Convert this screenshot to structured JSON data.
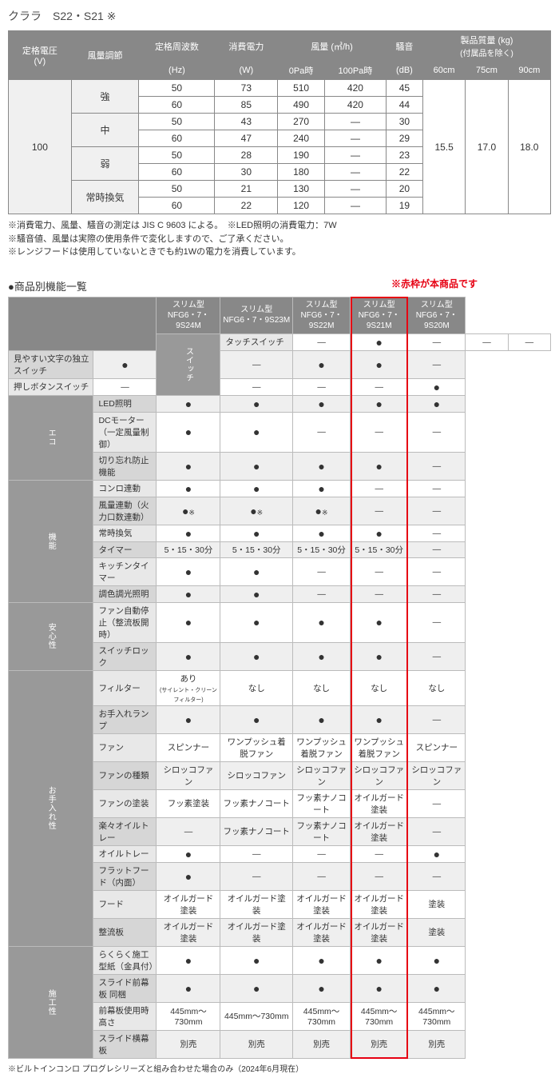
{
  "title": "クララ　S22・S21 ※",
  "spec": {
    "headers": {
      "voltage": "定格電圧",
      "voltage_unit": "(V)",
      "airflow_adj": "風量調節",
      "freq": "定格周波数",
      "freq_unit": "(Hz)",
      "power": "消費電力",
      "power_unit": "(W)",
      "airflow": "風量 (㎥/h)",
      "air_0pa": "0Pa時",
      "air_100pa": "100Pa時",
      "noise": "騒音",
      "noise_unit": "(dB)",
      "mass": "製品質量 (kg)",
      "mass_sub": "(付属品を除く)",
      "w60": "60cm",
      "w75": "75cm",
      "w90": "90cm"
    },
    "voltage_val": "100",
    "modes": [
      "強",
      "中",
      "弱",
      "常時換気"
    ],
    "rows": [
      {
        "freq": "50",
        "power": "73",
        "a0": "510",
        "a100": "420",
        "noise": "45"
      },
      {
        "freq": "60",
        "power": "85",
        "a0": "490",
        "a100": "420",
        "noise": "44"
      },
      {
        "freq": "50",
        "power": "43",
        "a0": "270",
        "a100": "—",
        "noise": "30"
      },
      {
        "freq": "60",
        "power": "47",
        "a0": "240",
        "a100": "—",
        "noise": "29"
      },
      {
        "freq": "50",
        "power": "28",
        "a0": "190",
        "a100": "—",
        "noise": "23"
      },
      {
        "freq": "60",
        "power": "30",
        "a0": "180",
        "a100": "—",
        "noise": "22"
      },
      {
        "freq": "50",
        "power": "21",
        "a0": "130",
        "a100": "—",
        "noise": "20"
      },
      {
        "freq": "60",
        "power": "22",
        "a0": "120",
        "a100": "—",
        "noise": "19"
      }
    ],
    "mass_vals": {
      "w60": "15.5",
      "w75": "17.0",
      "w90": "18.0"
    }
  },
  "notes": [
    "※消費電力、風量、騒音の測定は JIS C 9603 による。　※LED照明の消費電力：7W",
    "※騒音値、風量は実際の使用条件で変化しますので、ご了承ください。",
    "※レンジフードは使用していないときでも約1Wの電力を消費しています。"
  ],
  "feat_section_title": "●商品別機能一覧",
  "red_note": "※赤枠が本商品です",
  "feat": {
    "col_type": "スリム型",
    "cols": [
      "NFG6・7・9S24M",
      "NFG6・7・9S23M",
      "NFG6・7・9S22M",
      "NFG6・7・9S21M",
      "NFG6・7・9S20M"
    ],
    "groups": [
      {
        "name": "スイッチ",
        "rows": [
          {
            "label": "タッチスイッチ",
            "v": [
              "—",
              "●",
              "—",
              "—",
              "—"
            ]
          },
          {
            "label": "見やすい文字の独立スイッチ",
            "v": [
              "●",
              "—",
              "●",
              "●",
              "—"
            ]
          },
          {
            "label": "押しボタンスイッチ",
            "v": [
              "—",
              "—",
              "—",
              "—",
              "●"
            ]
          }
        ]
      },
      {
        "name": "エコ",
        "rows": [
          {
            "label": "LED照明",
            "v": [
              "●",
              "●",
              "●",
              "●",
              "●"
            ]
          },
          {
            "label": "DCモーター（一定風量制御）",
            "v": [
              "●",
              "●",
              "—",
              "—",
              "—"
            ]
          },
          {
            "label": "切り忘れ防止機能",
            "v": [
              "●",
              "●",
              "●",
              "●",
              "—"
            ]
          }
        ]
      },
      {
        "name": "機能",
        "rows": [
          {
            "label": "コンロ連動",
            "v": [
              "●",
              "●",
              "●",
              "—",
              "—"
            ]
          },
          {
            "label": "風量連動（火力口数連動）",
            "v": [
              "●※",
              "●※",
              "●※",
              "—",
              "—"
            ]
          },
          {
            "label": "常時換気",
            "v": [
              "●",
              "●",
              "●",
              "●",
              "—"
            ]
          },
          {
            "label": "タイマー",
            "v": [
              "5・15・30分",
              "5・15・30分",
              "5・15・30分",
              "5・15・30分",
              "—"
            ]
          },
          {
            "label": "キッチンタイマー",
            "v": [
              "●",
              "●",
              "—",
              "—",
              "—"
            ]
          },
          {
            "label": "調色調光照明",
            "v": [
              "●",
              "●",
              "—",
              "—",
              "—"
            ]
          }
        ]
      },
      {
        "name": "安心性",
        "rows": [
          {
            "label": "ファン自動停止（整流板開時）",
            "v": [
              "●",
              "●",
              "●",
              "●",
              "—"
            ]
          },
          {
            "label": "スイッチロック",
            "v": [
              "●",
              "●",
              "●",
              "●",
              "—"
            ]
          }
        ]
      },
      {
        "name": "お手入れ性",
        "rows": [
          {
            "label": "フィルター",
            "v": [
              "あり\n(サイレント・クリーンフィルター)",
              "なし",
              "なし",
              "なし",
              "なし"
            ]
          },
          {
            "label": "お手入れランプ",
            "v": [
              "●",
              "●",
              "●",
              "●",
              "—"
            ]
          },
          {
            "label": "ファン",
            "v": [
              "スピンナー",
              "ワンプッシュ着脱ファン",
              "ワンプッシュ着脱ファン",
              "ワンプッシュ着脱ファン",
              "スピンナー"
            ]
          },
          {
            "label": "ファンの種類",
            "v": [
              "シロッコファン",
              "シロッコファン",
              "シロッコファン",
              "シロッコファン",
              "シロッコファン"
            ]
          },
          {
            "label": "ファンの塗装",
            "v": [
              "フッ素塗装",
              "フッ素ナノコート",
              "フッ素ナノコート",
              "オイルガード塗装",
              "—"
            ]
          },
          {
            "label": "楽々オイルトレー",
            "v": [
              "—",
              "フッ素ナノコート",
              "フッ素ナノコート",
              "オイルガード塗装",
              "—"
            ]
          },
          {
            "label": "オイルトレー",
            "v": [
              "●",
              "—",
              "—",
              "—",
              "●"
            ]
          },
          {
            "label": "フラットフード（内面）",
            "v": [
              "●",
              "—",
              "—",
              "—",
              "—"
            ]
          },
          {
            "label": "フード",
            "v": [
              "オイルガード塗装",
              "オイルガード塗装",
              "オイルガード塗装",
              "オイルガード塗装",
              "塗装"
            ]
          },
          {
            "label": "整流板",
            "v": [
              "オイルガード塗装",
              "オイルガード塗装",
              "オイルガード塗装",
              "オイルガード塗装",
              "塗装"
            ]
          }
        ]
      },
      {
        "name": "施工性",
        "rows": [
          {
            "label": "らくらく施工型紙（金具付）",
            "v": [
              "●",
              "●",
              "●",
              "●",
              "●"
            ]
          },
          {
            "label": "スライド前幕板 同梱",
            "v": [
              "●",
              "●",
              "●",
              "●",
              "●"
            ]
          },
          {
            "label": "前幕板使用時高さ",
            "v": [
              "445mm〜730mm",
              "445mm〜730mm",
              "445mm〜730mm",
              "445mm〜730mm",
              "445mm〜730mm"
            ]
          },
          {
            "label": "スライド横幕板",
            "v": [
              "別売",
              "別売",
              "別売",
              "別売",
              "別売"
            ]
          }
        ]
      }
    ]
  },
  "footnote": "※ビルトインコンロ プログレシリーズと組み合わせた場合のみ（2024年6月現在）",
  "highlight_col": 3
}
